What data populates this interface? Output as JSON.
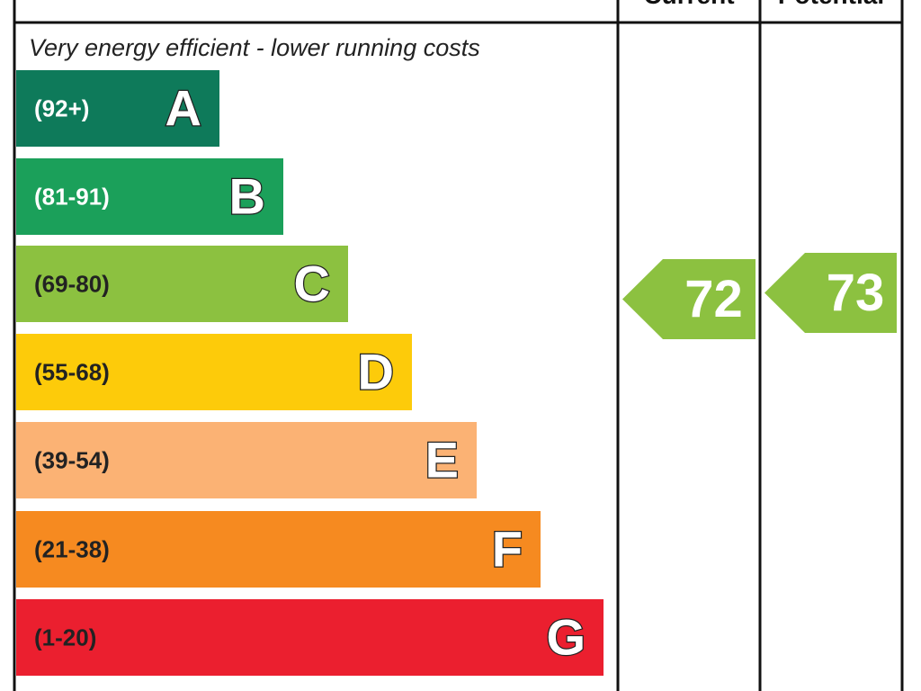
{
  "header": {
    "current": "Current",
    "potential": "Potential"
  },
  "top_note": "Very energy efficient - lower running costs",
  "bands": [
    {
      "range": "(92+)",
      "letter": "A",
      "color": "#0e7a5a"
    },
    {
      "range": "(81-91)",
      "letter": "B",
      "color": "#1ba05a"
    },
    {
      "range": "(69-80)",
      "letter": "C",
      "color": "#8cc140"
    },
    {
      "range": "(55-68)",
      "letter": "D",
      "color": "#fdcb0a"
    },
    {
      "range": "(39-54)",
      "letter": "E",
      "color": "#fbb274"
    },
    {
      "range": "(21-38)",
      "letter": "F",
      "color": "#f68a20"
    },
    {
      "range": "(1-20)",
      "letter": "G",
      "color": "#eb1f2f"
    }
  ],
  "current": {
    "value": 72,
    "color": "#8cc140"
  },
  "potential": {
    "value": 73,
    "color": "#8cc140"
  }
}
